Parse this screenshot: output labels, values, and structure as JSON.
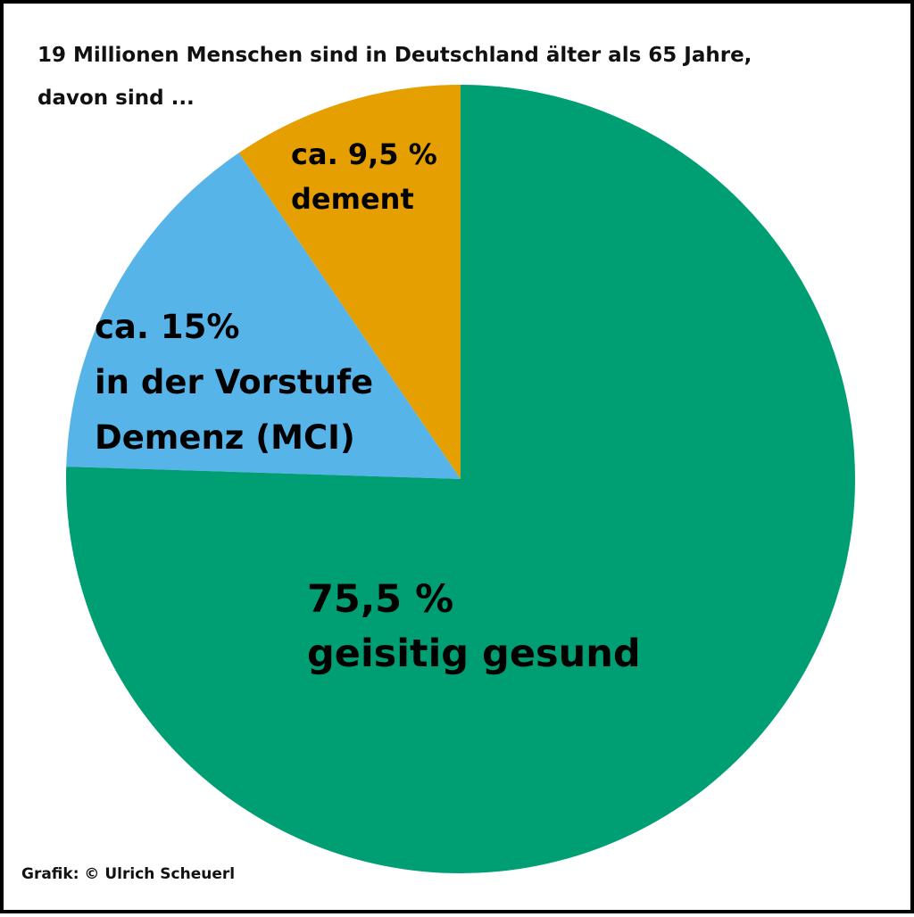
{
  "chart_data": {
    "type": "pie",
    "title_lines": [
      "19 Millionen Menschen sind in Deutschland älter als 65 Jahre,",
      "davon sind ..."
    ],
    "slices": [
      {
        "name": "dement",
        "value": 9.5,
        "color": "#E69F00",
        "label_lines": [
          "ca. 9,5 %",
          "dement"
        ]
      },
      {
        "name": "Vorstufe Demenz (MCI)",
        "value": 15,
        "color": "#56B4E9",
        "label_lines": [
          "ca. 15%",
          "in der Vorstufe",
          "Demenz (MCI)"
        ]
      },
      {
        "name": "geistig gesund",
        "value": 75.5,
        "color": "#009E73",
        "label_lines": [
          "75,5 %",
          "geisitig gesund"
        ]
      }
    ],
    "legend": "none"
  },
  "credit": "Grafik: © Ulrich Scheuerl"
}
